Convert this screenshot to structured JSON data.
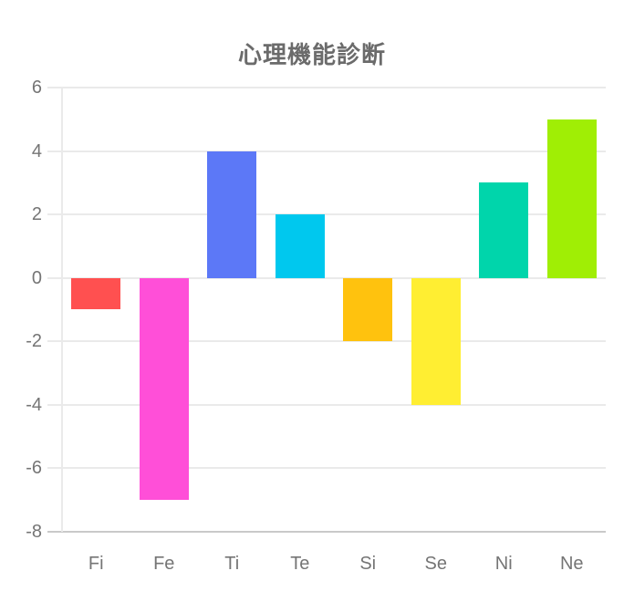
{
  "title": "心理機能診断",
  "chart_data": {
    "type": "bar",
    "title": "心理機能診断",
    "categories": [
      "Fi",
      "Fe",
      "Ti",
      "Te",
      "Si",
      "Se",
      "Ni",
      "Ne"
    ],
    "values": [
      -1,
      -7,
      4,
      2,
      -2,
      -4,
      3,
      5
    ],
    "bar_colors": [
      "#FF5050",
      "#FF4FD8",
      "#5C78F7",
      "#00C8EE",
      "#FFC20E",
      "#FFEE32",
      "#00D5AB",
      "#A0EE05"
    ],
    "xlabel": "",
    "ylabel": "",
    "ylim": [
      -8,
      6
    ],
    "ytick_step": 2,
    "ytick_labels": [
      "6",
      "4",
      "2",
      "0",
      "-2",
      "-4",
      "-6",
      "-8"
    ],
    "grid": true,
    "legend": "none"
  },
  "colors": {
    "background": "#FFFFFF",
    "title_text": "#6B6B6B",
    "axis_text": "#757575",
    "gridline": "#EAEAEA",
    "baseline": "#C9C9C9",
    "bar_border_alpha": "80"
  }
}
